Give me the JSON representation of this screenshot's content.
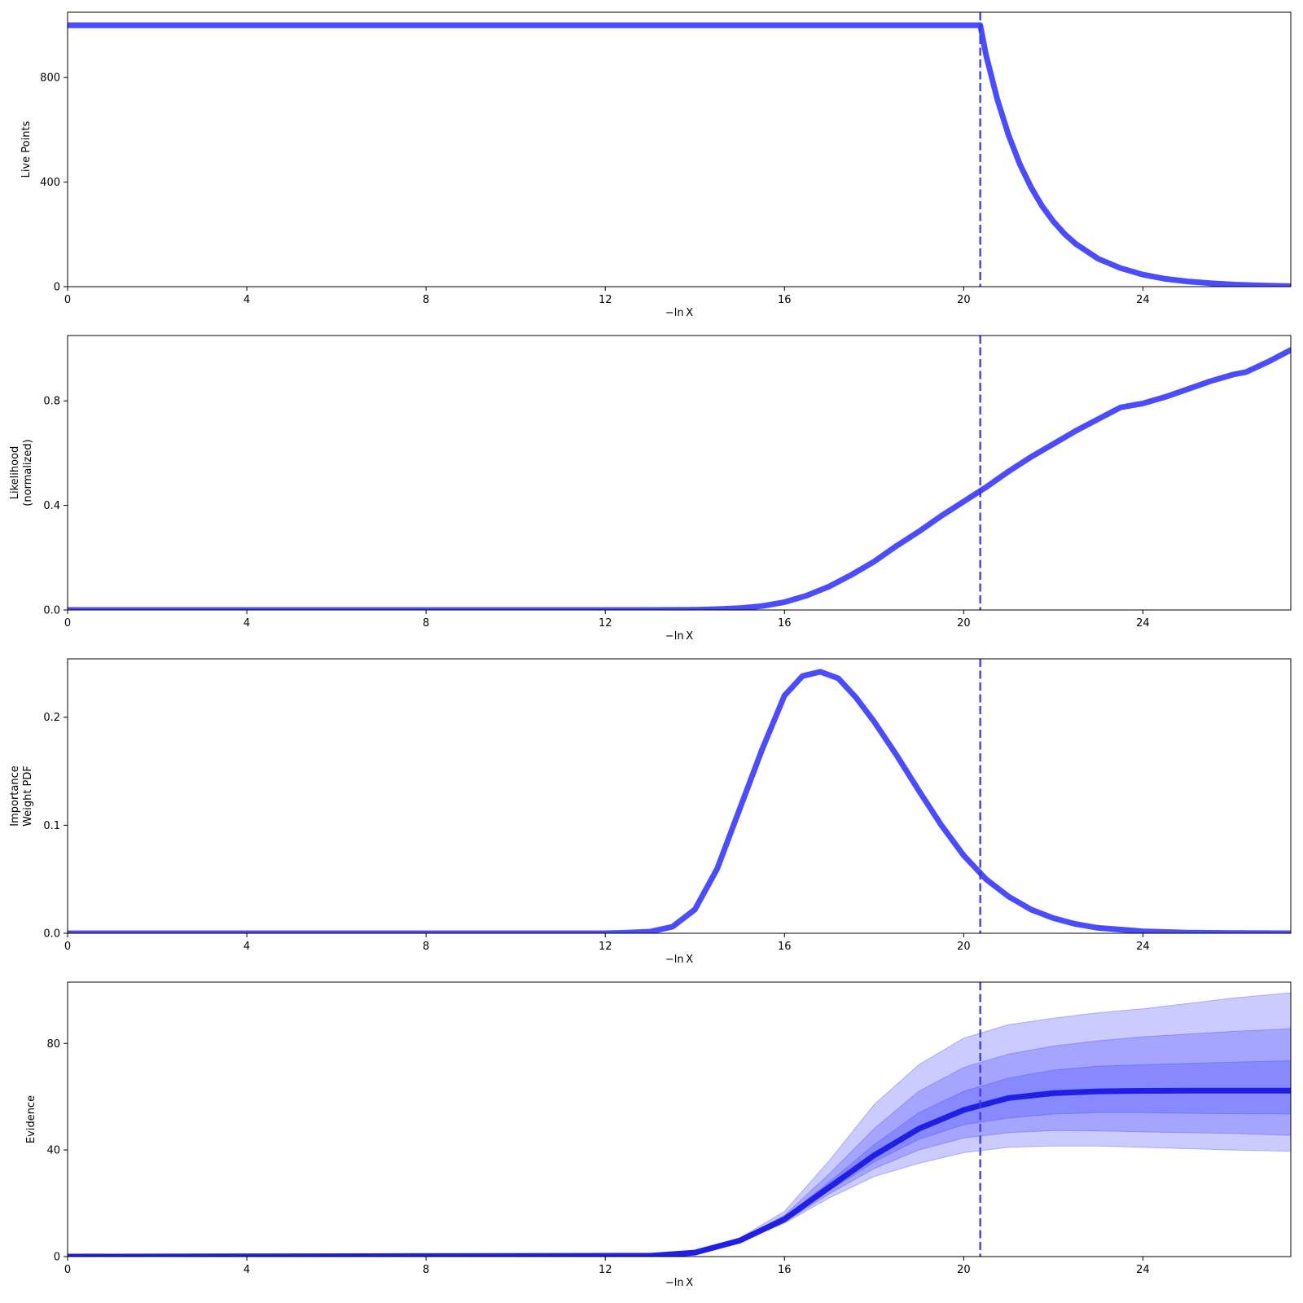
{
  "chart_data": [
    {
      "type": "line",
      "xlabel": "−ln X",
      "ylabel": [
        "Live Points"
      ],
      "xlim": [
        0,
        27.3
      ],
      "ylim": [
        0,
        1050
      ],
      "xticks": [
        0,
        4,
        8,
        12,
        16,
        20,
        24
      ],
      "yticks": [
        0,
        400,
        800
      ],
      "grid": false,
      "vline": 20.37,
      "series": [
        {
          "values": [
            [
              0,
              1000
            ],
            [
              20.0,
              1000
            ],
            [
              20.37,
              1000
            ],
            [
              20.5,
              885
            ],
            [
              20.75,
              717
            ],
            [
              21.0,
              580
            ],
            [
              21.25,
              470
            ],
            [
              21.5,
              381
            ],
            [
              21.75,
              308
            ],
            [
              22.0,
              250
            ],
            [
              22.25,
              202
            ],
            [
              22.5,
              164
            ],
            [
              23.0,
              107
            ],
            [
              23.5,
              71
            ],
            [
              24.0,
              46
            ],
            [
              24.5,
              30
            ],
            [
              25.0,
              20
            ],
            [
              25.5,
              13
            ],
            [
              26.0,
              8
            ],
            [
              26.5,
              5
            ],
            [
              27.3,
              2
            ]
          ]
        }
      ]
    },
    {
      "type": "line",
      "xlabel": "−ln X",
      "ylabel": [
        "Likelihood",
        "(normalized)"
      ],
      "xlim": [
        0,
        27.3
      ],
      "ylim": [
        0,
        1.05
      ],
      "xticks": [
        0,
        4,
        8,
        12,
        16,
        20,
        24
      ],
      "yticks": [
        0.0,
        0.4,
        0.8
      ],
      "ytick_labels": [
        "0.0",
        "0.4",
        "0.8"
      ],
      "grid": false,
      "vline": 20.37,
      "series": [
        {
          "values": [
            [
              0,
              0
            ],
            [
              13,
              0
            ],
            [
              14,
              0.001
            ],
            [
              14.5,
              0.003
            ],
            [
              15,
              0.007
            ],
            [
              15.5,
              0.015
            ],
            [
              16,
              0.03
            ],
            [
              16.5,
              0.055
            ],
            [
              17,
              0.09
            ],
            [
              17.5,
              0.135
            ],
            [
              18,
              0.185
            ],
            [
              18.5,
              0.245
            ],
            [
              19,
              0.3
            ],
            [
              19.5,
              0.36
            ],
            [
              20,
              0.415
            ],
            [
              20.5,
              0.47
            ],
            [
              21,
              0.53
            ],
            [
              21.5,
              0.585
            ],
            [
              22,
              0.635
            ],
            [
              22.5,
              0.685
            ],
            [
              23,
              0.73
            ],
            [
              23.5,
              0.775
            ],
            [
              24,
              0.79
            ],
            [
              24.5,
              0.815
            ],
            [
              25,
              0.845
            ],
            [
              25.5,
              0.875
            ],
            [
              26,
              0.9
            ],
            [
              26.3,
              0.91
            ],
            [
              26.8,
              0.95
            ],
            [
              27.3,
              0.995
            ]
          ]
        }
      ]
    },
    {
      "type": "line",
      "xlabel": "−ln X",
      "ylabel": [
        "Importance",
        "Weight PDF"
      ],
      "xlim": [
        0,
        27.3
      ],
      "ylim": [
        0,
        0.254
      ],
      "xticks": [
        0,
        4,
        8,
        12,
        16,
        20,
        24
      ],
      "yticks": [
        0.0,
        0.1,
        0.2
      ],
      "ytick_labels": [
        "0.0",
        "0.1",
        "0.2"
      ],
      "grid": false,
      "vline": 20.37,
      "series": [
        {
          "values": [
            [
              0,
              0
            ],
            [
              12,
              0
            ],
            [
              12.5,
              0.0005
            ],
            [
              13,
              0.0015
            ],
            [
              13.5,
              0.006
            ],
            [
              14,
              0.022
            ],
            [
              14.5,
              0.06
            ],
            [
              15,
              0.115
            ],
            [
              15.5,
              0.17
            ],
            [
              16,
              0.22
            ],
            [
              16.4,
              0.238
            ],
            [
              16.8,
              0.242
            ],
            [
              17.2,
              0.236
            ],
            [
              17.6,
              0.218
            ],
            [
              18,
              0.196
            ],
            [
              18.5,
              0.165
            ],
            [
              19,
              0.132
            ],
            [
              19.5,
              0.1
            ],
            [
              20,
              0.072
            ],
            [
              20.5,
              0.05
            ],
            [
              21,
              0.034
            ],
            [
              21.5,
              0.022
            ],
            [
              22,
              0.014
            ],
            [
              22.5,
              0.0085
            ],
            [
              23,
              0.005
            ],
            [
              24,
              0.0018
            ],
            [
              25,
              0.0006
            ],
            [
              26,
              0.0002
            ],
            [
              27.3,
              0
            ]
          ]
        }
      ]
    },
    {
      "type": "area",
      "xlabel": "−ln X",
      "ylabel": [
        "Evidence"
      ],
      "xlim": [
        0,
        27.3
      ],
      "ylim": [
        0,
        103
      ],
      "xticks": [
        0,
        4,
        8,
        12,
        16,
        20,
        24
      ],
      "yticks": [
        0,
        40,
        80
      ],
      "grid": false,
      "vline": 20.37,
      "x": [
        0,
        13,
        14,
        15,
        16,
        17,
        18,
        19,
        20,
        21,
        22,
        23,
        24,
        25,
        26,
        27.3
      ],
      "median": [
        0,
        0.3,
        1.5,
        6,
        14,
        26,
        38,
        48,
        55,
        59.5,
        61.3,
        62,
        62.2,
        62.3,
        62.3,
        62.3
      ],
      "bands": [
        {
          "lower": [
            0,
            0.3,
            1.4,
            5.5,
            12.5,
            22,
            30,
            35,
            39,
            41,
            41.5,
            41.5,
            41,
            40.5,
            40,
            39.5
          ],
          "upper": [
            0,
            0.3,
            1.7,
            7,
            17,
            36,
            57,
            72,
            82,
            87,
            89.5,
            91.5,
            93,
            95,
            97,
            99
          ]
        },
        {
          "lower": [
            0,
            0.3,
            1.45,
            5.7,
            13,
            23.5,
            33,
            40,
            44.5,
            46.5,
            47.3,
            47.2,
            46.8,
            46.5,
            46.2,
            45.5
          ],
          "upper": [
            0,
            0.3,
            1.6,
            6.5,
            15.5,
            31,
            48,
            62,
            71,
            76,
            79,
            81,
            82.5,
            83.5,
            84.5,
            85.5
          ]
        },
        {
          "lower": [
            0,
            0.3,
            1.48,
            5.85,
            13.5,
            24.8,
            35.5,
            44,
            49.5,
            52,
            53.5,
            54,
            54,
            53.8,
            53.6,
            53.5
          ],
          "upper": [
            0,
            0.3,
            1.55,
            6.2,
            14.8,
            28,
            42,
            54,
            62,
            67,
            70,
            71.5,
            72,
            72.5,
            73,
            73.5
          ]
        }
      ]
    }
  ],
  "colors": {
    "line": "#3333ff",
    "band": "#4040ff",
    "median": "#1f1fe6"
  }
}
